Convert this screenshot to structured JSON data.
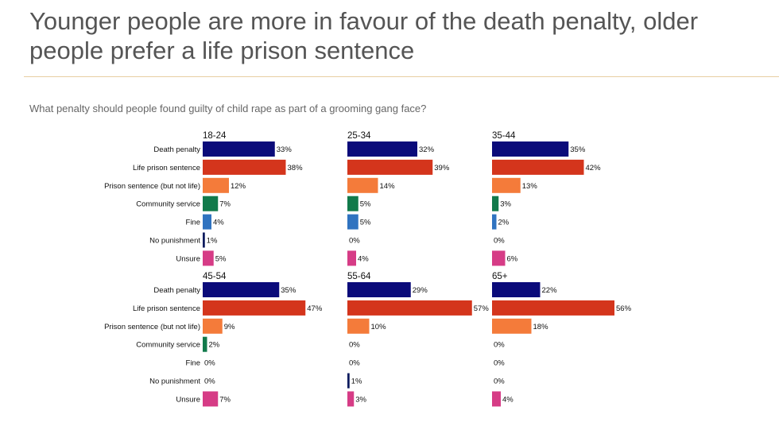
{
  "title": "Younger people are more in favour of the death penalty, older people prefer a life prison sentence",
  "subtitle": "What penalty should people found guilty of child rape as part of a grooming gang face?",
  "chart_data": {
    "type": "bar",
    "orientation": "horizontal",
    "categories": [
      "Death penalty",
      "Life prison sentence",
      "Prison sentence (but not life)",
      "Community service",
      "Fine",
      "No punishment",
      "Unsure"
    ],
    "colors": [
      "#0b0b7a",
      "#d4351c",
      "#f47b3a",
      "#117a4b",
      "#2f73c0",
      "#0d1b5e",
      "#d63c86"
    ],
    "value_suffix": "%",
    "panels": [
      {
        "name": "18-24",
        "values": [
          33,
          38,
          12,
          7,
          4,
          1,
          5
        ]
      },
      {
        "name": "25-34",
        "values": [
          32,
          39,
          14,
          5,
          5,
          0,
          4
        ]
      },
      {
        "name": "35-44",
        "values": [
          35,
          42,
          13,
          3,
          2,
          0,
          6
        ]
      },
      {
        "name": "45-54",
        "values": [
          35,
          47,
          9,
          2,
          0,
          0,
          7
        ]
      },
      {
        "name": "55-64",
        "values": [
          29,
          57,
          10,
          0,
          0,
          1,
          3
        ]
      },
      {
        "name": "65+",
        "values": [
          22,
          56,
          18,
          0,
          0,
          0,
          4
        ]
      }
    ]
  }
}
